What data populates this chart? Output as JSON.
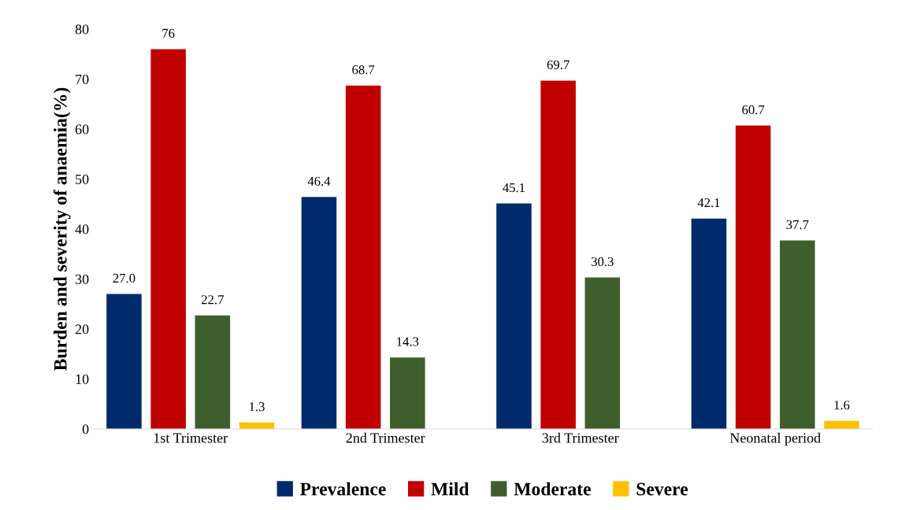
{
  "chart_data": {
    "type": "bar",
    "ylabel": "Burden and severity of anaemia(%)",
    "categories": [
      "1st Trimester",
      "2nd Trimester",
      "3rd Trimester",
      "Neonatal period"
    ],
    "series": [
      {
        "name": "Prevalence",
        "color": "#002a6c",
        "values": [
          27.0,
          46.4,
          45.1,
          42.1
        ],
        "value_labels": [
          "27.0",
          "46.4",
          "45.1",
          "42.1"
        ]
      },
      {
        "name": "Mild",
        "color": "#c00000",
        "values": [
          76,
          68.7,
          69.7,
          60.7
        ],
        "value_labels": [
          "76",
          "68.7",
          "69.7",
          "60.7"
        ]
      },
      {
        "name": "Moderate",
        "color": "#3e5f2b",
        "values": [
          22.7,
          14.3,
          30.3,
          37.7
        ],
        "value_labels": [
          "22.7",
          "14.3",
          "30.3",
          "37.7"
        ]
      },
      {
        "name": "Severe",
        "color": "#ffc000",
        "values": [
          1.3,
          null,
          null,
          1.6
        ],
        "value_labels": [
          "1.3",
          null,
          null,
          "1.6"
        ]
      }
    ],
    "ylim": [
      0,
      80
    ],
    "yticks": [
      0,
      10,
      20,
      30,
      40,
      50,
      60,
      70,
      80
    ],
    "grid": false,
    "legend": "bottom"
  }
}
